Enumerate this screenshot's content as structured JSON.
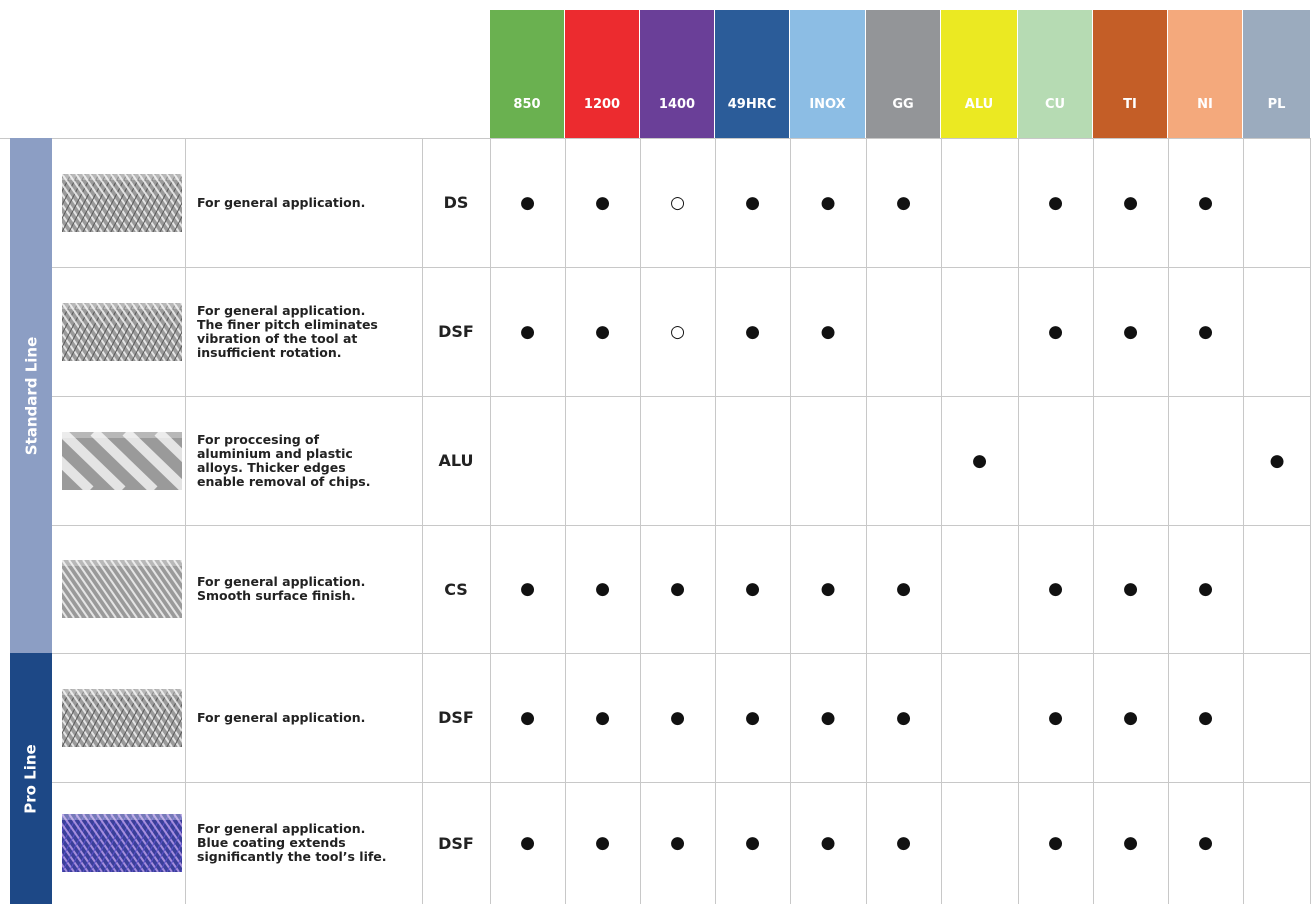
{
  "header": {
    "columns": [
      {
        "label": "850",
        "color": "#6ab150"
      },
      {
        "label": "1200",
        "color": "#ec2b2f"
      },
      {
        "label": "1400",
        "color": "#6a3f98"
      },
      {
        "label": "49HRC",
        "color": "#2b5c99"
      },
      {
        "label": "INOX",
        "color": "#8cbde4"
      },
      {
        "label": "GG",
        "color": "#939598"
      },
      {
        "label": "ALU",
        "color": "#ebe922"
      },
      {
        "label": "CU",
        "color": "#b6dbb3"
      },
      {
        "label": "TI",
        "color": "#c45e27"
      },
      {
        "label": "NI",
        "color": "#f4a97c"
      },
      {
        "label": "PL",
        "color": "#9babbe"
      }
    ]
  },
  "table": {
    "groups": [
      {
        "label": "Standard Line",
        "color": "#8c9ec4",
        "rows": [
          {
            "description": [
              "For general application."
            ],
            "code": "DS",
            "marks": [
              "●",
              "●",
              "○",
              "●",
              "●",
              "●",
              null,
              "●",
              "●",
              "●",
              null
            ]
          },
          {
            "description": [
              "For general application.",
              "The finer pitch eliminates",
              "vibration of the tool at",
              "insufficient rotation."
            ],
            "code": "DSF",
            "marks": [
              "●",
              "●",
              "○",
              "●",
              "●",
              null,
              null,
              "●",
              "●",
              "●",
              null
            ]
          },
          {
            "description": [
              "For proccesing of",
              "aluminium and plastic",
              "alloys. Thicker edges",
              "enable removal of chips."
            ],
            "code": "ALU",
            "marks": [
              null,
              null,
              null,
              null,
              null,
              null,
              "●",
              null,
              null,
              null,
              "●"
            ]
          },
          {
            "description": [
              "For general application.",
              "Smooth surface finish."
            ],
            "code": "CS",
            "marks": [
              "●",
              "●",
              "●",
              "●",
              "●",
              "●",
              null,
              "●",
              "●",
              "●",
              null
            ]
          }
        ]
      },
      {
        "label": "Pro Line",
        "color": "#1d4886",
        "rows": [
          {
            "description": [
              "For general application."
            ],
            "code": "DSF",
            "marks": [
              "●",
              "●",
              "●",
              "●",
              "●",
              "●",
              null,
              "●",
              "●",
              "●",
              null
            ]
          },
          {
            "description": [
              "For general application.",
              "Blue coating extends",
              "significantly the tool’s life."
            ],
            "code": "DSF",
            "marks": [
              "●",
              "●",
              "●",
              "●",
              "●",
              "●",
              null,
              "●",
              "●",
              "●",
              null
            ]
          }
        ]
      }
    ]
  }
}
